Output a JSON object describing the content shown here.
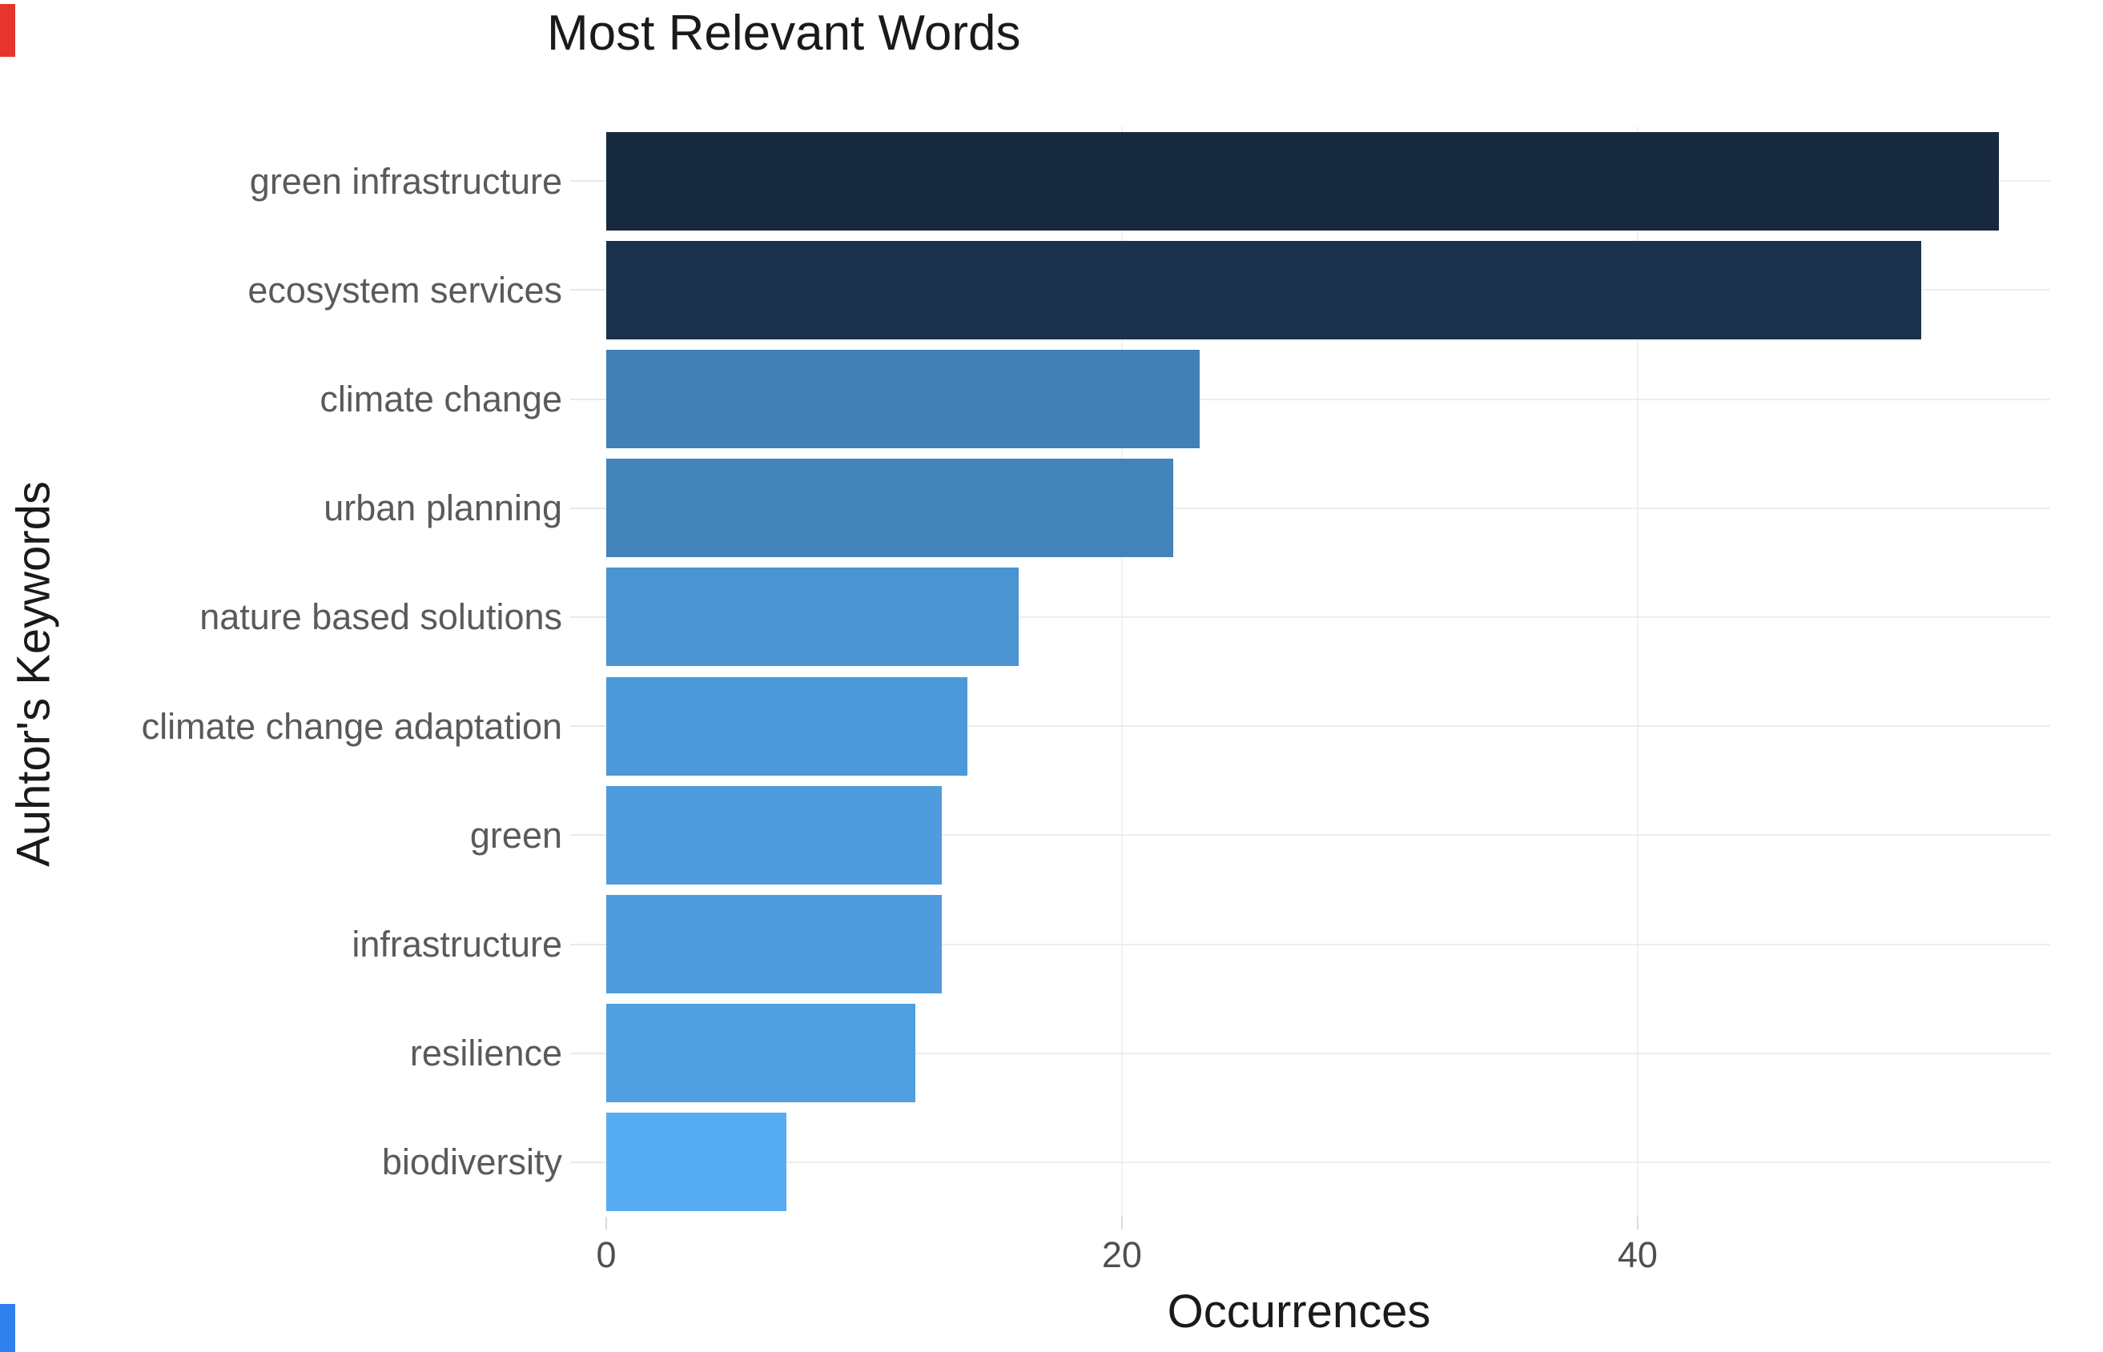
{
  "page": {
    "background": "#ffffff",
    "left_edge_marks": {
      "top_color": "#e5352c",
      "bottom_color": "#2f80ed"
    }
  },
  "chart_data": {
    "type": "bar",
    "orientation": "horizontal",
    "title": "Most Relevant Words",
    "xlabel": "Occurrences",
    "ylabel": "Auhtor's Keywords",
    "categories": [
      "green infrastructure",
      "ecosystem services",
      "climate change",
      "urban planning",
      "nature based solutions",
      "climate change adaptation",
      "green",
      "infrastructure",
      "resilience",
      "biodiversity"
    ],
    "values": [
      54,
      51,
      23,
      22,
      16,
      14,
      13,
      13,
      12,
      7
    ],
    "bar_colors": [
      "#16293F",
      "#1A314B",
      "#4080B6",
      "#4283BA",
      "#4A94D1",
      "#4C99D9",
      "#4E9CDD",
      "#4E9CDD",
      "#4F9FE1",
      "#56ADF4"
    ],
    "xlim": [
      0,
      56
    ],
    "xticks": [
      0,
      20,
      40
    ],
    "grid": true,
    "legend": false,
    "text_colors": {
      "title": "#1a1a1a",
      "axis_title": "#1a1a1a",
      "tick_label": "#4f4f4f",
      "category_label": "#5a5a5a"
    }
  }
}
